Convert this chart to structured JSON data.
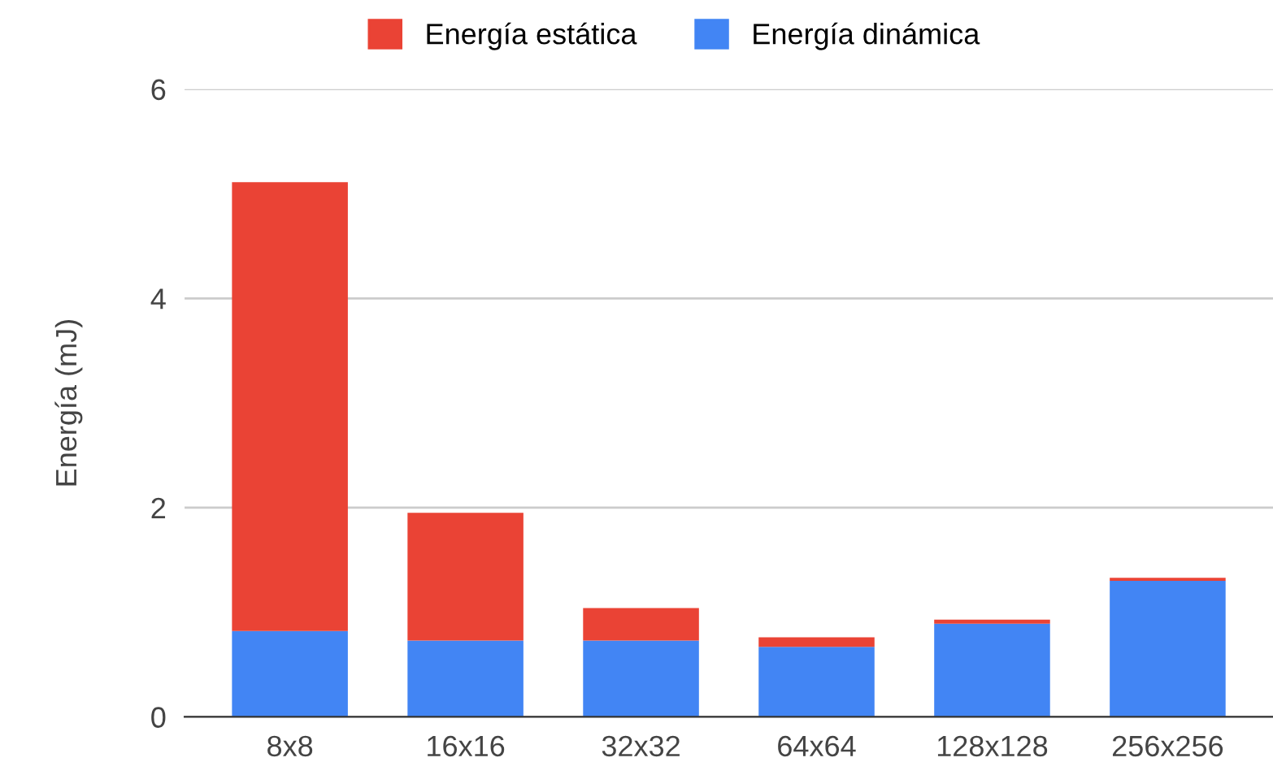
{
  "chart_data": {
    "type": "bar",
    "stacked": true,
    "ylabel": "Energía (mJ)",
    "categories": [
      "8x8",
      "16x16",
      "32x32",
      "64x64",
      "128x128",
      "256x256"
    ],
    "series": [
      {
        "name": "Energía dinámica",
        "color": "#4285f4",
        "values": [
          0.82,
          0.73,
          0.73,
          0.67,
          0.89,
          1.3
        ]
      },
      {
        "name": "Energía estática",
        "color": "#ea4335",
        "values": [
          4.29,
          1.22,
          0.31,
          0.09,
          0.04,
          0.03
        ]
      }
    ],
    "ylim": [
      0,
      6
    ],
    "yticks": [
      0,
      2,
      4,
      6
    ],
    "grid": "y",
    "legend": "top"
  }
}
